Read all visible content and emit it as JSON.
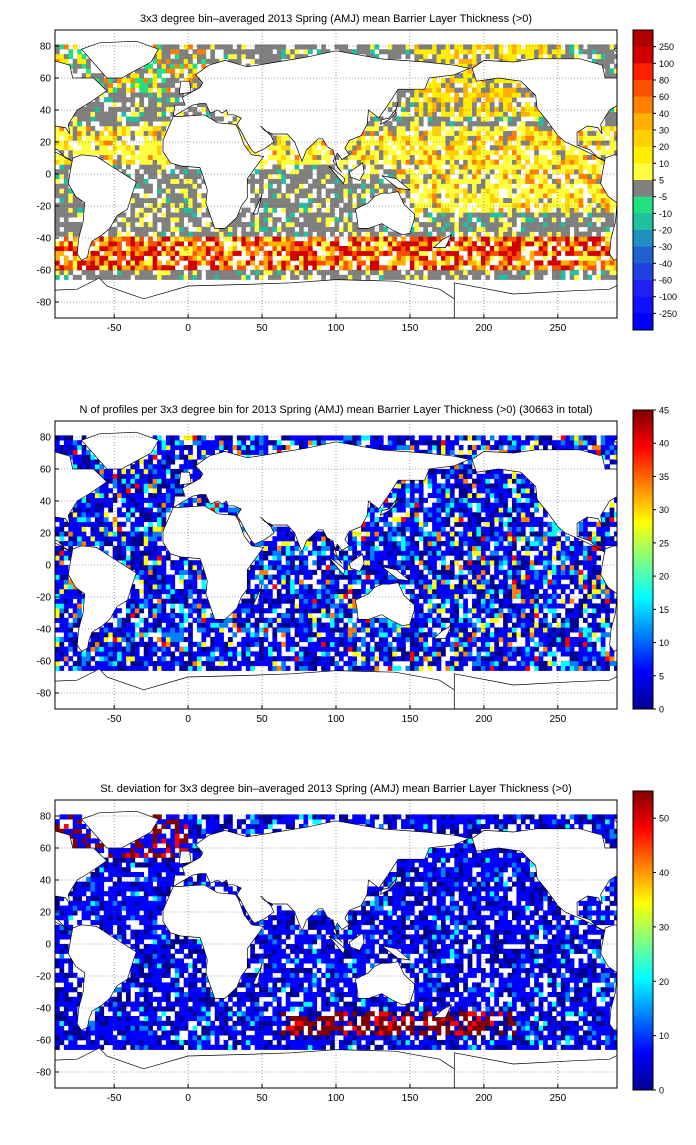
{
  "colors": {
    "land": "#ffffff",
    "frame": "#000000",
    "grid": "#555555",
    "neutral_bin": "#808080"
  },
  "grid_style": "dotted",
  "panels": [
    {
      "id": "mean",
      "title": "3x3 degree bin–averaged 2013 Spring (AMJ) mean Barrier Layer Thickness (>0)",
      "x_ticks": [
        "-50",
        "0",
        "50",
        "100",
        "150",
        "200",
        "250"
      ],
      "y_ticks": [
        "80",
        "60",
        "40",
        "20",
        "0",
        "-20",
        "-40",
        "-60",
        "-80"
      ],
      "colorbar_type": "discrete",
      "colorbar_labels": [
        "250",
        "100",
        "80",
        "60",
        "40",
        "30",
        "20",
        "10",
        "5",
        "-5",
        "-10",
        "-20",
        "-30",
        "-40",
        "-60",
        "-100",
        "-250"
      ],
      "colorbar_colors": [
        "#b00000",
        "#d00000",
        "#ff2000",
        "#ff5000",
        "#ff8000",
        "#ffb000",
        "#ffd000",
        "#ffee00",
        "#ffff40",
        "#808080",
        "#20e080",
        "#20c0a0",
        "#2090c0",
        "#2060d0",
        "#2040e0",
        "#2020f0",
        "#1010ff",
        "#0000ff"
      ]
    },
    {
      "id": "count",
      "title": "N of profiles per 3x3 degree bin for 2013 Spring (AMJ) mean Barrier Layer Thickness (>0) (30663 in total)",
      "x_ticks": [
        "-50",
        "0",
        "50",
        "100",
        "150",
        "200",
        "250"
      ],
      "y_ticks": [
        "80",
        "60",
        "40",
        "20",
        "0",
        "-20",
        "-40",
        "-60",
        "-80"
      ],
      "colorbar_type": "continuous",
      "colorbar_labels": [
        "45",
        "40",
        "35",
        "30",
        "25",
        "20",
        "15",
        "10",
        "5",
        "0"
      ]
    },
    {
      "id": "std",
      "title": "St. deviation for 3x3 degree bin–averaged 2013 Spring (AMJ) mean Barrier Layer Thickness (>0)",
      "x_ticks": [
        "-50",
        "0",
        "50",
        "100",
        "150",
        "200",
        "250"
      ],
      "y_ticks": [
        "80",
        "60",
        "40",
        "20",
        "0",
        "-20",
        "-40",
        "-60",
        "-80"
      ],
      "colorbar_type": "continuous",
      "colorbar_labels": [
        "50",
        "40",
        "30",
        "20",
        "10",
        "0"
      ]
    }
  ],
  "jet_colors": [
    "#00008f",
    "#0000ff",
    "#0080ff",
    "#00ffff",
    "#80ff80",
    "#ffff00",
    "#ff8000",
    "#ff0000",
    "#800000"
  ]
}
